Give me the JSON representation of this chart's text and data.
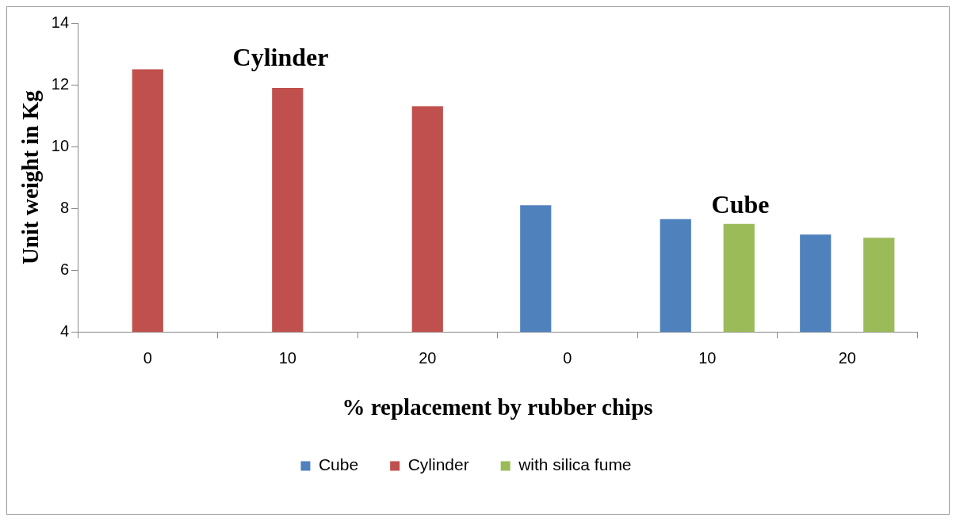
{
  "chart_data": {
    "type": "bar",
    "xlabel": "% replacement by rubber chips",
    "ylabel": "Unit weight in Kg",
    "categories": [
      "0",
      "10",
      "20",
      "0",
      "10",
      "20"
    ],
    "series": [
      {
        "name": "Cube",
        "color": "#4f81bd",
        "values": [
          null,
          null,
          null,
          8.1,
          7.65,
          7.15
        ]
      },
      {
        "name": "Cylinder",
        "color": "#c0504d",
        "values": [
          12.5,
          11.9,
          11.3,
          null,
          null,
          null
        ]
      },
      {
        "name": "with silica fume",
        "color": "#9bbb59",
        "values": [
          null,
          null,
          null,
          null,
          7.5,
          7.05
        ]
      }
    ],
    "ylim": [
      4,
      14
    ],
    "yticks": [
      4,
      6,
      8,
      10,
      12,
      14
    ],
    "grid": false,
    "legend": "bottom",
    "annotations": [
      "Cylinder",
      "Cube"
    ]
  }
}
